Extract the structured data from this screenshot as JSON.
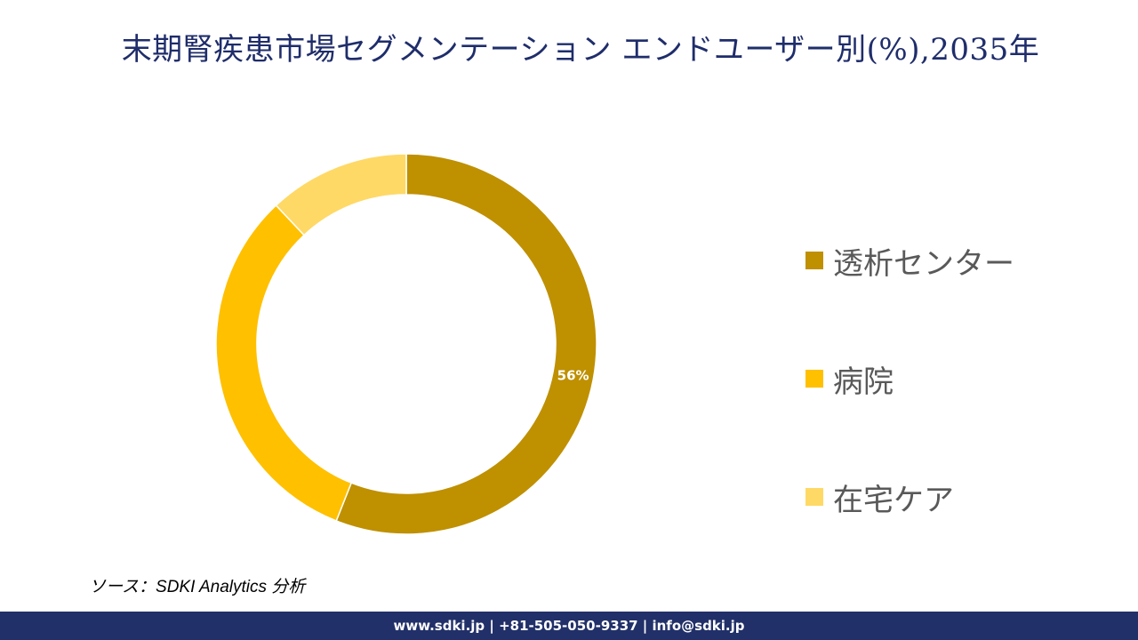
{
  "title": "末期腎疾患市場セグメンテーション エンドユーザー別(%),2035年",
  "chart_data": {
    "type": "pie",
    "variant": "donut",
    "title": "末期腎疾患市場セグメンテーション エンドユーザー別(%),2035年",
    "categories": [
      "透析センター",
      "病院",
      "在宅ケア"
    ],
    "values": [
      56,
      32,
      12
    ],
    "unit": "%",
    "data_labels": [
      "56%",
      "",
      ""
    ],
    "colors": [
      "#bf9000",
      "#ffc000",
      "#ffd966"
    ],
    "legend_position": "right"
  },
  "source": "ソース：SDKI Analytics 分析",
  "footer": "www.sdki.jp | +81-505-050-9337 | info@sdki.jp"
}
